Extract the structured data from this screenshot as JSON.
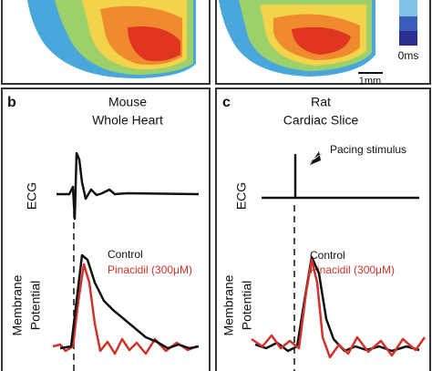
{
  "top": {
    "scale_label": "0ms",
    "scale_bar": "1mm"
  },
  "panels": [
    {
      "letter": "b",
      "title": [
        "Mouse",
        "Whole Heart"
      ],
      "ecg_label": "ECG",
      "vm_label": [
        "Membrane",
        "Potential"
      ],
      "legend": [
        "Control",
        "Pinacidil (300μM)"
      ]
    },
    {
      "letter": "c",
      "title": [
        "Rat",
        "Cardiac Slice"
      ],
      "annotation": "Pacing stimulus",
      "ecg_label": "ECG",
      "vm_label": [
        "Membrane",
        "Potential"
      ],
      "legend": [
        "Control",
        "Pinacidil (300μM)"
      ]
    }
  ]
}
